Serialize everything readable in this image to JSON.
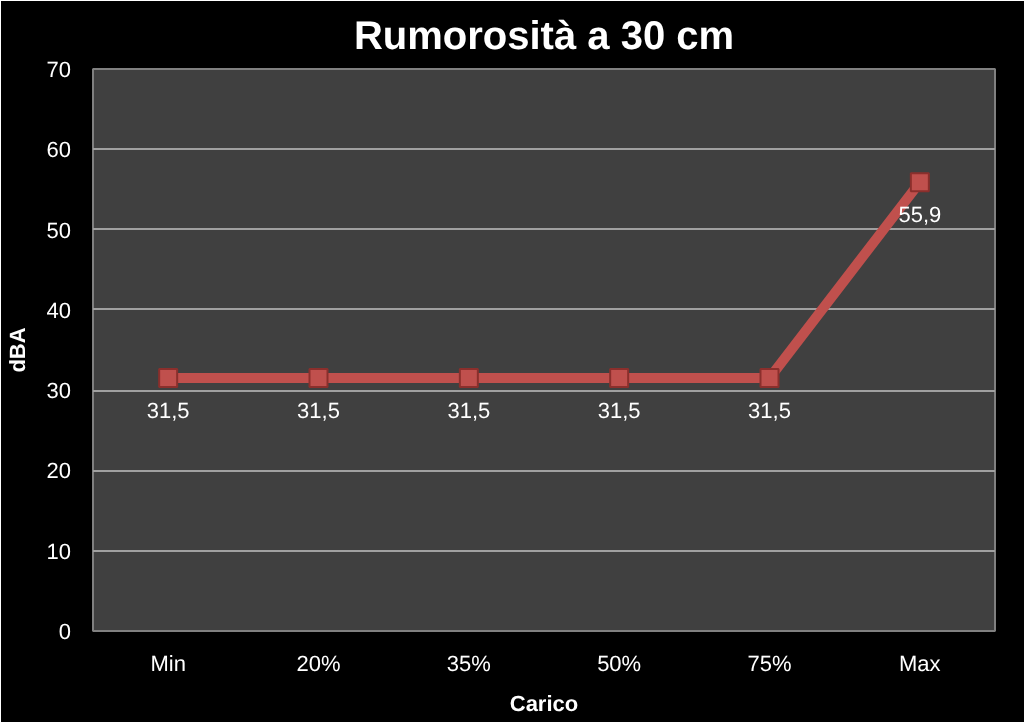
{
  "chart_data": {
    "type": "line",
    "title": "Rumorosità a 30 cm",
    "xlabel": "Carico",
    "ylabel": "dBA",
    "categories": [
      "Min",
      "20%",
      "35%",
      "50%",
      "75%",
      "Max"
    ],
    "series": [
      {
        "color": "#c0504d",
        "values": [
          31.5,
          31.5,
          31.5,
          31.5,
          31.5,
          55.9
        ],
        "value_labels": [
          "31,5",
          "31,5",
          "31,5",
          "31,5",
          "31,5",
          "55,9"
        ]
      }
    ],
    "ylim": [
      0,
      70
    ],
    "yticks": [
      0,
      10,
      20,
      30,
      40,
      50,
      60,
      70
    ],
    "grid": "y",
    "marker": "square",
    "line_style": "solid"
  }
}
